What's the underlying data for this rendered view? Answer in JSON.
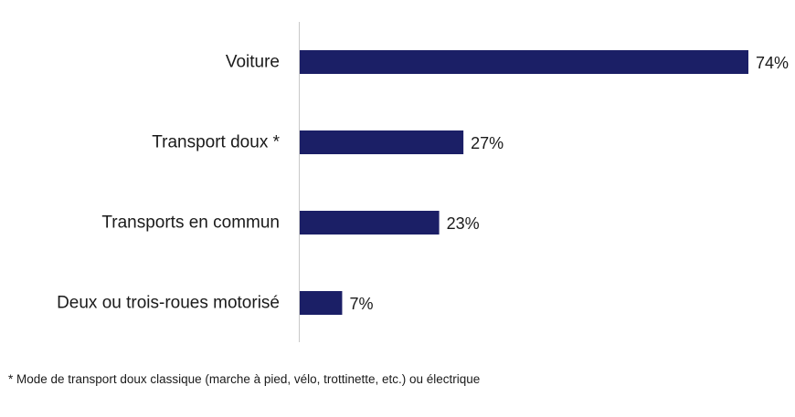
{
  "colors": {
    "bar": "#1b1f66",
    "axis": "#c8c8c8",
    "text": "#1a1a1a"
  },
  "chart_data": {
    "type": "bar",
    "orientation": "horizontal",
    "categories": [
      "Voiture",
      "Transport doux *",
      "Transports en commun",
      "Deux ou trois-roues motorisé"
    ],
    "values": [
      74,
      27,
      23,
      7
    ],
    "value_labels": [
      "74%",
      "27%",
      "23%",
      "7%"
    ],
    "unit": "%",
    "xlim": [
      0,
      74
    ],
    "grid": false,
    "legend": "none"
  },
  "footnote": "* Mode de transport doux classique (marche à pied, vélo, trottinette, etc.) ou électrique"
}
